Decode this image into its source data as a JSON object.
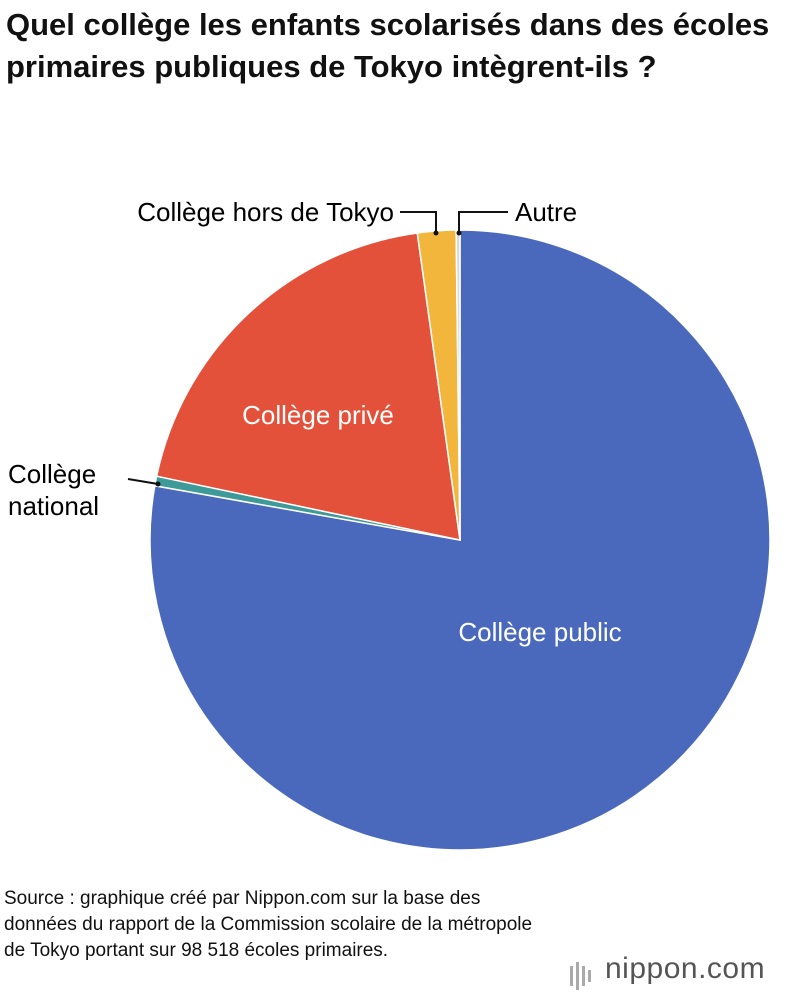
{
  "chart_data": {
    "type": "pie",
    "title": "Quel collège les enfants scolarisés dans des écoles primaires publiques de Tokyo intègrent-ils ?",
    "categories": [
      "Collège public",
      "Collège national",
      "Collège privé",
      "Collège hors de Tokyo",
      "Autre"
    ],
    "values": [
      77.8,
      0.5,
      19.5,
      2.0,
      0.2
    ],
    "colors": [
      "#4a69bd",
      "#3d9a98",
      "#e4513a",
      "#f2b63c",
      "#d9d9d9"
    ],
    "source": "Source : graphique créé par Nippon.com sur la base des données du rapport de la Commission scolaire de la métropole de Tokyo portant sur 98 518 écoles primaires."
  },
  "brand": "nippon.com"
}
